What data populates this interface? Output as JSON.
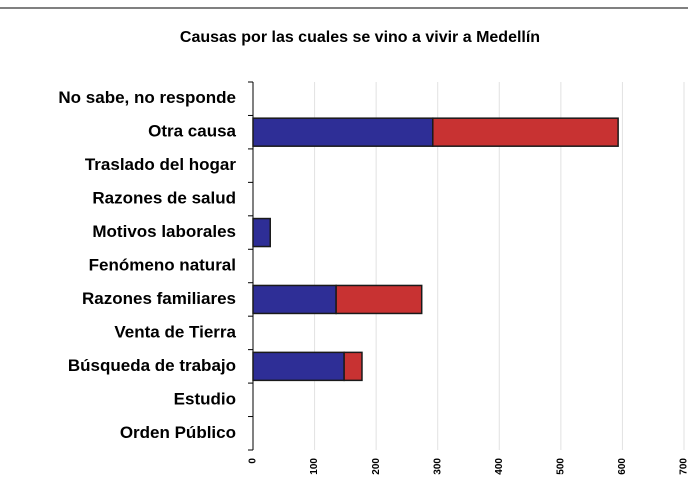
{
  "chart_data": {
    "type": "bar",
    "orientation": "horizontal",
    "stacked": true,
    "title": "Causas por las cuales se vino a vivir a Medellín",
    "categories": [
      "No sabe, no responde",
      "Otra causa",
      "Traslado del hogar",
      "Razones de salud",
      "Motivos laborales",
      "Fenómeno natural",
      "Razones familiares",
      "Venta de Tierra",
      "Búsqueda de trabajo",
      "Estudio",
      "Orden Público"
    ],
    "series": [
      {
        "color": "#2e2e96",
        "values": [
          0,
          292,
          0,
          0,
          28,
          0,
          135,
          0,
          148,
          0,
          0
        ]
      },
      {
        "color": "#c83232",
        "values": [
          0,
          301,
          0,
          0,
          0,
          0,
          139,
          0,
          29,
          0,
          0
        ]
      }
    ],
    "xlim": [
      0,
      700
    ],
    "xticks": [
      0,
      100,
      200,
      300,
      400,
      500,
      600,
      700
    ],
    "grid": true
  }
}
